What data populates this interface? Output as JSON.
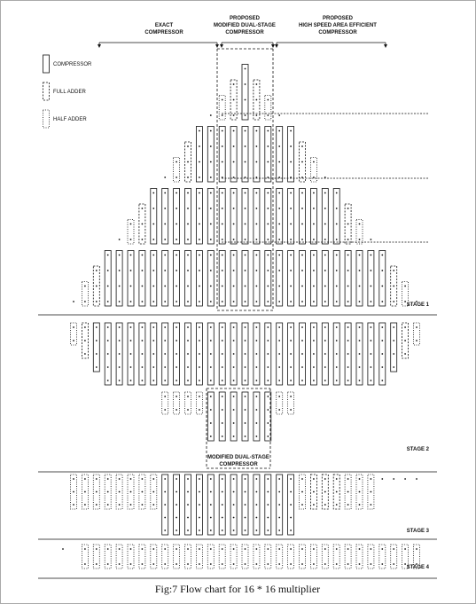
{
  "headers": [
    {
      "lines": [
        "EXACT",
        "COMPRESSOR"
      ]
    },
    {
      "lines": [
        "PROPOSED",
        "MODIFIED DUAL-STAGE",
        "COMPRESSOR"
      ]
    },
    {
      "lines": [
        "PROPOSED",
        "HIGH SPEED AREA EFFICIENT",
        "COMPRESSOR"
      ]
    }
  ],
  "legend": [
    "COMPRESSOR",
    "FULL ADDER",
    "HALF ADDER"
  ],
  "stages": [
    "STAGE 1",
    "STAGE 2",
    "STAGE 3",
    "STAGE 4"
  ],
  "inner_label": [
    "MODIFIED DUAL-STAGE",
    "COMPRESSOR"
  ],
  "caption": "Fig:7  Flow chart for 16 * 16 multiplier"
}
